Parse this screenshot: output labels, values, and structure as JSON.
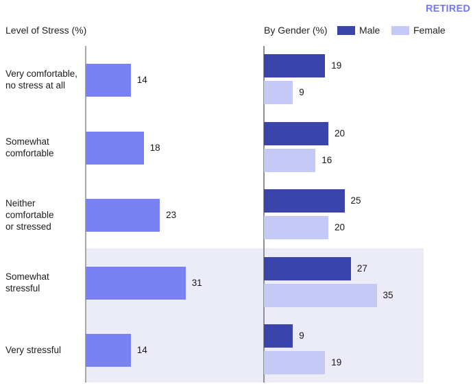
{
  "page": {
    "tag": "RETIRED"
  },
  "left_chart": {
    "title": "Level of Stress (%)"
  },
  "right_chart": {
    "title": "By Gender (%)",
    "legend": [
      {
        "key": "male",
        "label": "Male",
        "color": "#3a44ab"
      },
      {
        "key": "female",
        "label": "Female",
        "color": "#c4c9f6"
      }
    ]
  },
  "chart_data": [
    {
      "type": "bar",
      "orientation": "horizontal",
      "title": "Level of Stress (%)",
      "unit": "percent",
      "categories": [
        "Very comfortable, no stress at all",
        "Somewhat comfortable",
        "Neither comfortable or stressed",
        "Somewhat stressful",
        "Very stressful"
      ],
      "values": [
        14,
        18,
        23,
        31,
        14
      ],
      "bar_color": "#7a81f3",
      "value_labels_shown": true,
      "axis_ticks_shown": false,
      "highlighted_categories": [
        "Somewhat stressful",
        "Very stressful"
      ]
    },
    {
      "type": "bar",
      "orientation": "horizontal",
      "title": "By Gender (%)",
      "unit": "percent",
      "categories": [
        "Very comfortable, no stress at all",
        "Somewhat comfortable",
        "Neither comfortable or stressed",
        "Somewhat stressful",
        "Very stressful"
      ],
      "series": [
        {
          "name": "Male",
          "color": "#3a44ab",
          "values": [
            19,
            20,
            25,
            27,
            9
          ]
        },
        {
          "name": "Female",
          "color": "#c4c9f6",
          "values": [
            9,
            16,
            20,
            35,
            19
          ]
        }
      ],
      "legend_position": "top",
      "value_labels_shown": true,
      "axis_ticks_shown": false,
      "highlighted_categories": [
        "Somewhat stressful",
        "Very stressful"
      ]
    }
  ],
  "category_label_lines": [
    [
      "Very comfortable,",
      "no stress at all"
    ],
    [
      "Somewhat",
      "comfortable"
    ],
    [
      "Neither",
      "comfortable",
      "or stressed"
    ],
    [
      "Somewhat",
      "stressful"
    ],
    [
      "Very stressful"
    ]
  ],
  "category_keys": [
    "very-comfortable",
    "somewhat-comfortable",
    "neither-comfortable-or-stressed",
    "somewhat-stressful",
    "very-stressful"
  ],
  "colors": {
    "tag_text": "#7478f0",
    "single_bar": "#7a81f3",
    "male_bar": "#3a44ab",
    "female_bar": "#c4c9f6",
    "highlight_band": "#ebecf8",
    "axis_left": "#a8a8a8",
    "axis_right": "#8f8f8f"
  }
}
